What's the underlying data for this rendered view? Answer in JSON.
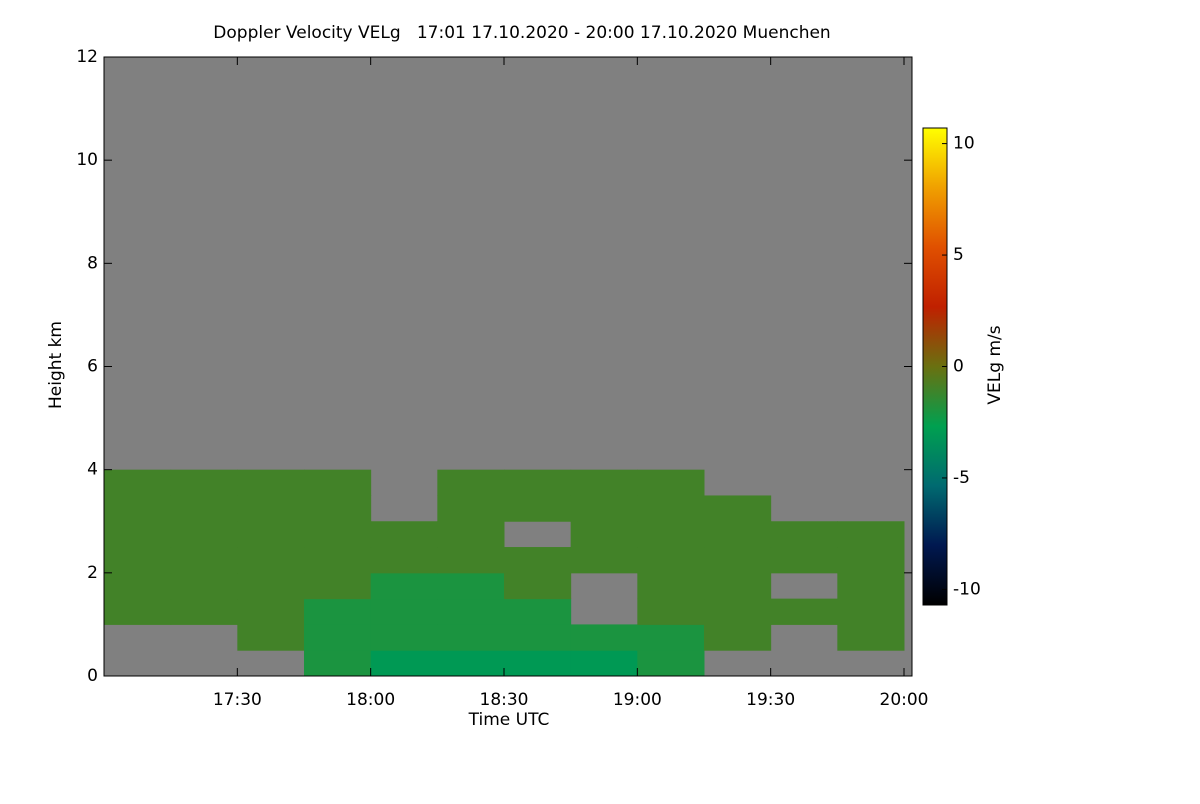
{
  "chart_data": {
    "type": "heatmap",
    "title": "Doppler Velocity VELg   17:01 17.10.2020 - 20:00 17.10.2020 Muenchen",
    "xlabel": "Time UTC",
    "ylabel": "Height km",
    "colorbar_label": "VELg m/s",
    "xlim": [
      17.0,
      20.03
    ],
    "xticks": [
      {
        "value": 17.5,
        "label": "17:30"
      },
      {
        "value": 18.0,
        "label": "18:00"
      },
      {
        "value": 18.5,
        "label": "18:30"
      },
      {
        "value": 19.0,
        "label": "19:00"
      },
      {
        "value": 19.5,
        "label": "19:30"
      },
      {
        "value": 20.0,
        "label": "20:00"
      }
    ],
    "ylim": [
      0,
      12
    ],
    "yticks": [
      0,
      2,
      4,
      6,
      8,
      10,
      12
    ],
    "x_bins": [
      17.0,
      17.25,
      17.5,
      17.75,
      18.0,
      18.25,
      18.5,
      18.75,
      19.0,
      19.25,
      19.5,
      19.75,
      20.0
    ],
    "y_bins": [
      0,
      0.5,
      1,
      1.5,
      2,
      2.5,
      3,
      3.5,
      4
    ],
    "z": [
      [
        null,
        null,
        null,
        -2,
        -3,
        -3,
        -3,
        -3,
        -2,
        null,
        null,
        null
      ],
      [
        null,
        null,
        -1,
        -2,
        -2,
        -2,
        -2,
        -2,
        -2,
        -1,
        null,
        -1
      ],
      [
        -1,
        -1,
        -1,
        -2,
        -2,
        -2,
        -2,
        null,
        -1,
        -1,
        -1,
        -1
      ],
      [
        -1,
        -1,
        -1,
        -1,
        -2,
        -2,
        -1,
        null,
        -1,
        -1,
        null,
        -1
      ],
      [
        -1,
        -1,
        -1,
        -1,
        -1,
        -1,
        -1,
        -1,
        -1,
        -1,
        -1,
        -1
      ],
      [
        -1,
        -1,
        -1,
        -1,
        -1,
        -1,
        null,
        -1,
        -1,
        -1,
        -1,
        -1
      ],
      [
        -1,
        -1,
        -1,
        -1,
        null,
        -1,
        -1,
        -1,
        -1,
        -1,
        null,
        null
      ],
      [
        -1,
        -1,
        -1,
        -1,
        null,
        -1,
        -1,
        -1,
        -1,
        null,
        null,
        null
      ]
    ],
    "missing_color": "#808080",
    "clim": [
      -10.7,
      10.7
    ],
    "cticks": [
      -10,
      -5,
      0,
      5,
      10
    ],
    "colormap": [
      "#000000",
      "#001850",
      "#006a70",
      "#00a050",
      "#6a7010",
      "#c02000",
      "#e05000",
      "#f0a000",
      "#ffff00"
    ]
  }
}
